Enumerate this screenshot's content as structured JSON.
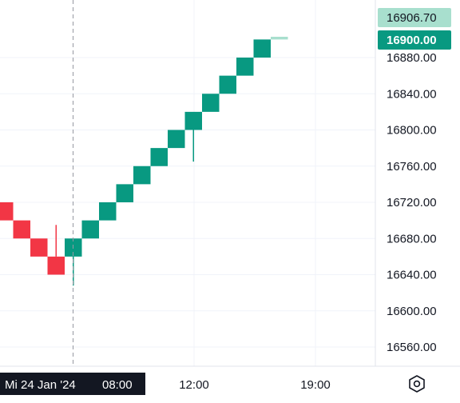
{
  "chart_data": {
    "type": "renko",
    "y_axis_ticks": [
      "16880.00",
      "16840.00",
      "16800.00",
      "16760.00",
      "16720.00",
      "16680.00",
      "16640.00",
      "16600.00",
      "16560.00"
    ],
    "y_axis_values": [
      16880,
      16840,
      16800,
      16760,
      16720,
      16680,
      16640,
      16600,
      16560
    ],
    "x_axis_ticks": [
      "12:00",
      "19:00"
    ],
    "crosshair_label": "Mi 24 Jan '24",
    "crosshair_time": "08:00",
    "box_size": 20,
    "bricks": [
      {
        "direction": "down",
        "low": 16700,
        "high": 16720
      },
      {
        "direction": "down",
        "low": 16680,
        "high": 16700
      },
      {
        "direction": "down",
        "low": 16660,
        "high": 16680
      },
      {
        "direction": "down",
        "low": 16640,
        "high": 16660,
        "wick_high": 16695
      },
      {
        "direction": "up",
        "low": 16660,
        "high": 16680,
        "wick_low": 16628
      },
      {
        "direction": "up",
        "low": 16680,
        "high": 16700
      },
      {
        "direction": "up",
        "low": 16700,
        "high": 16720
      },
      {
        "direction": "up",
        "low": 16720,
        "high": 16740
      },
      {
        "direction": "up",
        "low": 16740,
        "high": 16760
      },
      {
        "direction": "up",
        "low": 16760,
        "high": 16780
      },
      {
        "direction": "up",
        "low": 16780,
        "high": 16800
      },
      {
        "direction": "up",
        "low": 16800,
        "high": 16820,
        "wick_low": 16765
      },
      {
        "direction": "up",
        "low": 16820,
        "high": 16840
      },
      {
        "direction": "up",
        "low": 16840,
        "high": 16860
      },
      {
        "direction": "up",
        "low": 16860,
        "high": 16880
      },
      {
        "direction": "up",
        "low": 16880,
        "high": 16900
      },
      {
        "direction": "up",
        "low": 16900,
        "high": 16903,
        "pending": true
      }
    ],
    "price_badges": [
      {
        "label": "16906.70",
        "value": 16906.7,
        "style": "light"
      },
      {
        "label": "16900.00",
        "value": 16900.0,
        "style": "solid"
      }
    ],
    "colors": {
      "up": "#089981",
      "down": "#f23645",
      "pending": "#a8dfce",
      "badge_solid": "#089981",
      "badge_light": "#a8dfce",
      "crosshair_label_bg": "#131722",
      "grid": "#f0f3fa"
    },
    "grid": true
  },
  "controls": {
    "settings_icon": "hexagon-settings-icon"
  }
}
